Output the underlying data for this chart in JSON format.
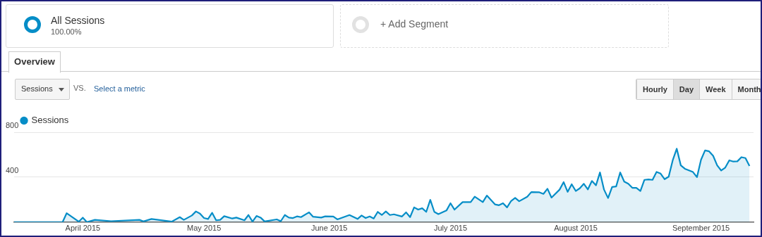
{
  "chart_data": {
    "type": "area",
    "legend": "top left",
    "grid": "y",
    "marker": "none",
    "line_style": "solid",
    "annotations": [
      "All Sessions",
      "100.00%",
      "+ Add Segment",
      "Overview",
      "Sessions",
      "VS.",
      "Select a metric",
      "Hourly",
      "Day",
      "Week",
      "Month"
    ],
    "xlim": [
      "2015-03-15",
      "2015-09-14"
    ],
    "xticks": [
      {
        "value": "2015-04-01",
        "label": "April 2015"
      },
      {
        "value": "2015-05-01",
        "label": "May 2015"
      },
      {
        "value": "2015-06-01",
        "label": "June 2015"
      },
      {
        "value": "2015-07-01",
        "label": "July 2015"
      },
      {
        "value": "2015-08-01",
        "label": "August 2015"
      },
      {
        "value": "2015-09-01",
        "label": "September 2015"
      }
    ],
    "ylim": [
      0,
      800
    ],
    "yticks": [
      {
        "value": 0,
        "label": null
      },
      400,
      800
    ],
    "series": [
      {
        "name": "Sessions",
        "color": "#058dc7",
        "x": [
          "2015-03-15",
          "2015-03-27",
          "2015-03-28",
          "2015-03-31",
          "2015-04-01",
          "2015-04-02",
          "2015-04-04",
          "2015-04-08",
          "2015-04-15",
          "2015-04-16",
          "2015-04-18",
          "2015-04-23",
          "2015-04-25",
          "2015-04-26",
          "2015-04-28",
          "2015-04-29",
          "2015-04-30",
          "2015-05-01",
          "2015-05-02",
          "2015-05-03",
          "2015-05-04",
          "2015-05-05",
          "2015-05-06",
          "2015-05-08",
          "2015-05-09",
          "2015-05-11",
          "2015-05-12",
          "2015-05-13",
          "2015-05-14",
          "2015-05-15",
          "2015-05-16",
          "2015-05-19",
          "2015-05-20",
          "2015-05-21",
          "2015-05-22",
          "2015-05-23",
          "2015-05-24",
          "2015-05-25",
          "2015-05-27",
          "2015-05-28",
          "2015-05-30",
          "2015-05-31",
          "2015-06-02",
          "2015-06-03",
          "2015-06-06",
          "2015-06-08",
          "2015-06-09",
          "2015-06-10",
          "2015-06-11",
          "2015-06-12",
          "2015-06-13",
          "2015-06-14",
          "2015-06-15",
          "2015-06-16",
          "2015-06-17",
          "2015-06-19",
          "2015-06-20",
          "2015-06-21",
          "2015-06-22",
          "2015-06-23",
          "2015-06-24",
          "2015-06-25",
          "2015-06-26",
          "2015-06-27",
          "2015-06-28",
          "2015-06-30",
          "2015-07-01",
          "2015-07-02",
          "2015-07-04",
          "2015-07-06",
          "2015-07-07",
          "2015-07-09",
          "2015-07-10",
          "2015-07-12",
          "2015-07-13",
          "2015-07-14",
          "2015-07-15",
          "2015-07-16",
          "2015-07-17",
          "2015-07-18",
          "2015-07-20",
          "2015-07-21",
          "2015-07-23",
          "2015-07-24",
          "2015-07-25",
          "2015-07-26",
          "2015-07-28",
          "2015-07-29",
          "2015-07-30",
          "2015-07-31",
          "2015-08-01",
          "2015-08-02",
          "2015-08-03",
          "2015-08-04",
          "2015-08-05",
          "2015-08-06",
          "2015-08-07",
          "2015-08-08",
          "2015-08-09",
          "2015-08-10",
          "2015-08-11",
          "2015-08-12",
          "2015-08-13",
          "2015-08-14",
          "2015-08-15",
          "2015-08-16",
          "2015-08-17",
          "2015-08-18",
          "2015-08-19",
          "2015-08-20",
          "2015-08-21",
          "2015-08-22",
          "2015-08-23",
          "2015-08-24",
          "2015-08-25",
          "2015-08-26",
          "2015-08-27",
          "2015-08-28",
          "2015-08-30",
          "2015-08-31",
          "2015-09-01",
          "2015-09-02",
          "2015-09-03",
          "2015-09-04",
          "2015-09-05",
          "2015-09-06",
          "2015-09-07",
          "2015-09-08",
          "2015-09-09",
          "2015-09-10",
          "2015-09-11",
          "2015-09-12",
          "2015-09-13"
        ],
        "values": [
          0,
          0,
          79,
          4,
          40,
          0,
          20,
          8,
          20,
          6,
          28,
          4,
          44,
          20,
          59,
          95,
          75,
          36,
          28,
          83,
          16,
          20,
          53,
          32,
          40,
          16,
          63,
          4,
          55,
          40,
          6,
          24,
          8,
          63,
          40,
          36,
          51,
          44,
          87,
          48,
          40,
          51,
          50,
          24,
          63,
          28,
          59,
          36,
          50,
          32,
          91,
          63,
          95,
          63,
          69,
          50,
          87,
          44,
          131,
          111,
          123,
          91,
          198,
          91,
          71,
          103,
          168,
          111,
          178,
          178,
          226,
          178,
          236,
          158,
          150,
          168,
          131,
          188,
          216,
          186,
          226,
          267,
          265,
          251,
          297,
          218,
          289,
          356,
          269,
          337,
          277,
          301,
          341,
          291,
          366,
          327,
          442,
          289,
          214,
          313,
          317,
          442,
          360,
          341,
          305,
          305,
          277,
          376,
          380,
          376,
          447,
          432,
          382,
          404,
          550,
          653,
          505,
          475,
          446,
          400,
          554,
          638,
          630,
          590,
          505,
          459,
          485,
          550,
          539,
          541,
          578,
          570,
          499
        ]
      }
    ]
  }
}
